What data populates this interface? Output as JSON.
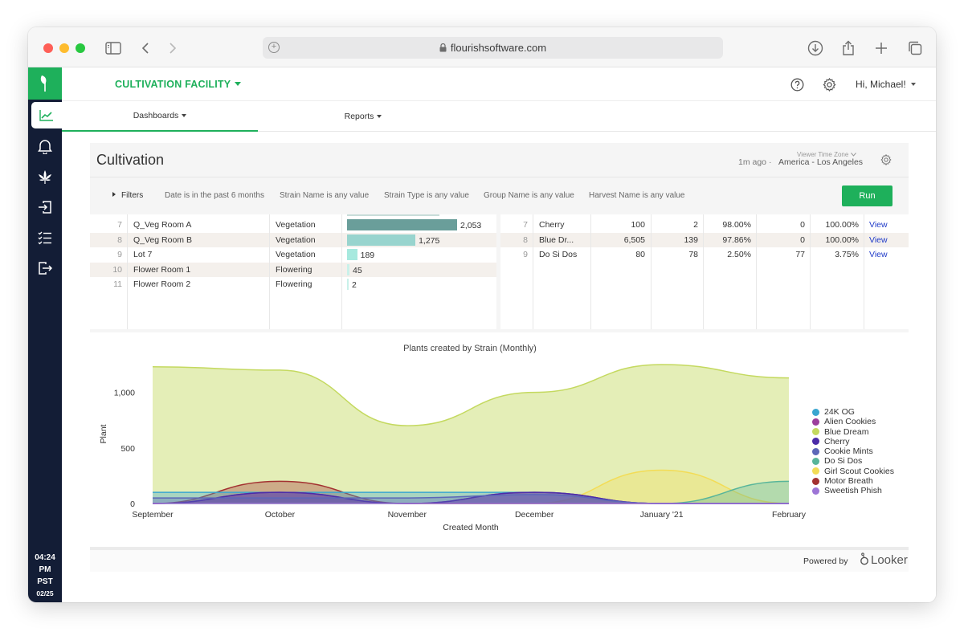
{
  "browser": {
    "url": "flourishsoftware.com"
  },
  "sidebar": {
    "time": "04:24",
    "ampm": "PM",
    "tz": "PST",
    "date": "02/25"
  },
  "header": {
    "facility": "CULTIVATION FACILITY",
    "greeting": "Hi, Michael!"
  },
  "nav": {
    "tabs": [
      {
        "label": "Dashboards"
      },
      {
        "label": "Reports"
      }
    ]
  },
  "dashboard": {
    "title": "Cultivation",
    "timezone_label": "Viewer Time Zone",
    "updated": "1m ago",
    "separator": "·",
    "timezone": "America - Los Angeles",
    "filters_label": "Filters",
    "filters": [
      "Date is in the past 6 months",
      "Strain Name is any value",
      "Strain Type is any value",
      "Group Name is any value",
      "Harvest Name is any value"
    ],
    "run_label": "Run",
    "powered_by": "Powered by",
    "looker": "Looker"
  },
  "left_table": {
    "rows": [
      {
        "num": "7",
        "room": "Q_Veg Room A",
        "stage": "Vegetation",
        "value": 2053,
        "label": "2,053"
      },
      {
        "num": "8",
        "room": "Q_Veg Room B",
        "stage": "Vegetation",
        "value": 1275,
        "label": "1,275"
      },
      {
        "num": "9",
        "room": "Lot 7",
        "stage": "Vegetation",
        "value": 189,
        "label": "189"
      },
      {
        "num": "10",
        "room": "Flower Room 1",
        "stage": "Flowering",
        "value": 45,
        "label": "45"
      },
      {
        "num": "11",
        "room": "Flower Room 2",
        "stage": "Flowering",
        "value": 2,
        "label": "2"
      }
    ],
    "bar_colors": [
      "#6a9e9a",
      "#98d4ce",
      "#a6e9de",
      "#c9f1ea",
      "#c9f1ea"
    ]
  },
  "right_table": {
    "rows": [
      {
        "num": "7",
        "strain": "Cherry",
        "a": "100",
        "b": "2",
        "pct1": "98.00%",
        "c": "0",
        "pct2": "100.00%",
        "link": "View"
      },
      {
        "num": "8",
        "strain": "Blue Dr...",
        "a": "6,505",
        "b": "139",
        "pct1": "97.86%",
        "c": "0",
        "pct2": "100.00%",
        "link": "View"
      },
      {
        "num": "9",
        "strain": "Do Si Dos",
        "a": "80",
        "b": "78",
        "pct1": "2.50%",
        "c": "77",
        "pct2": "3.75%",
        "link": "View"
      }
    ]
  },
  "chart_data": {
    "type": "area",
    "title": "Plants created by Strain (Monthly)",
    "xlabel": "Created Month",
    "ylabel": "Plant",
    "categories": [
      "September",
      "October",
      "November",
      "December",
      "January '21",
      "February"
    ],
    "yticks": [
      0,
      500,
      1000
    ],
    "yticklabels": [
      "0",
      "500",
      "1,000"
    ],
    "ylim": [
      0,
      1250
    ],
    "legend_position": "right",
    "series": [
      {
        "name": "24K OG",
        "color": "#3aa6d0",
        "values": [
          100,
          100,
          100,
          100,
          0,
          0
        ]
      },
      {
        "name": "Alien Cookies",
        "color": "#9c3f9c",
        "values": [
          0,
          100,
          0,
          100,
          0,
          0
        ]
      },
      {
        "name": "Blue Dream",
        "color": "#c4d95f",
        "values": [
          1230,
          1200,
          700,
          1000,
          1250,
          1130
        ]
      },
      {
        "name": "Cherry",
        "color": "#4b2ca8",
        "values": [
          0,
          100,
          0,
          100,
          0,
          0
        ]
      },
      {
        "name": "Cookie Mints",
        "color": "#5c67b8",
        "values": [
          50,
          50,
          50,
          80,
          0,
          0
        ]
      },
      {
        "name": "Do Si Dos",
        "color": "#58b59a",
        "values": [
          0,
          0,
          0,
          0,
          0,
          200
        ]
      },
      {
        "name": "Girl Scout Cookies",
        "color": "#f3dc56",
        "values": [
          0,
          0,
          0,
          0,
          300,
          0
        ]
      },
      {
        "name": "Motor Breath",
        "color": "#a33131",
        "values": [
          0,
          200,
          0,
          0,
          0,
          0
        ]
      },
      {
        "name": "Sweetish Phish",
        "color": "#9d75d6",
        "values": [
          0,
          0,
          0,
          0,
          0,
          0
        ]
      }
    ]
  }
}
